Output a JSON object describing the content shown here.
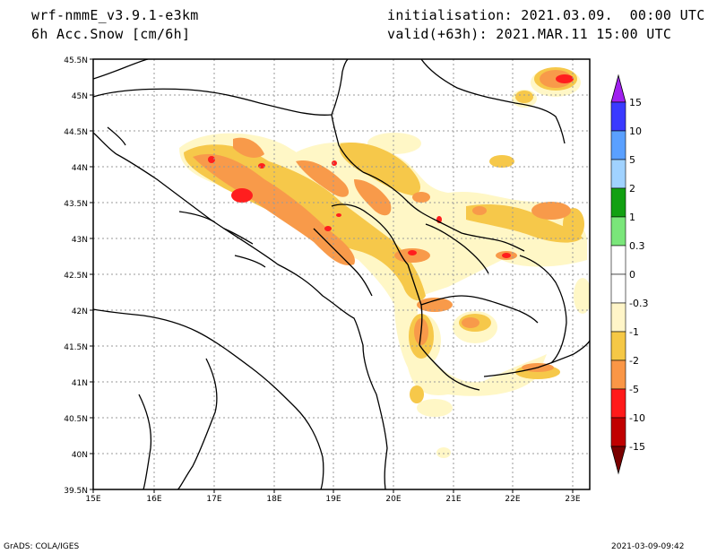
{
  "header": {
    "model": "wrf-nmmE_v3.9.1-e3km",
    "field": "6h Acc.Snow [cm/6h]",
    "init": "initialisation: 2021.03.09.  00:00 UTC",
    "valid": "valid(+63h): 2021.MAR.11 15:00 UTC"
  },
  "footer": {
    "left": "GrADS: COLA/IGES",
    "right": "2021-03-09-09:42"
  },
  "axes": {
    "lon_ticks": [
      "15E",
      "16E",
      "17E",
      "18E",
      "19E",
      "20E",
      "21E",
      "22E",
      "23E"
    ],
    "lat_ticks": [
      "45.5N",
      "45N",
      "44.5N",
      "44N",
      "43.5N",
      "43N",
      "42.5N",
      "42N",
      "41.5N",
      "41N",
      "40.5N",
      "40N",
      "39.5N"
    ]
  },
  "legend": {
    "labels": [
      "15",
      "10",
      "5",
      "2",
      "1",
      "0.3",
      "0",
      "-0.3",
      "-1",
      "-2",
      "-5",
      "-10",
      "-15"
    ],
    "colors": [
      "#a020f0",
      "#3a3aff",
      "#5aa0ff",
      "#a0d2ff",
      "#12a012",
      "#7ae67a",
      "#ffffff",
      "#fff5c8",
      "#f5c846",
      "#fa9646",
      "#ff1a1a",
      "#c00000",
      "#7a0000"
    ]
  },
  "colors": {
    "light": "#fff7c6",
    "yellow": "#f6c84a",
    "orange": "#f89a4a",
    "red": "#ff1e1e"
  }
}
